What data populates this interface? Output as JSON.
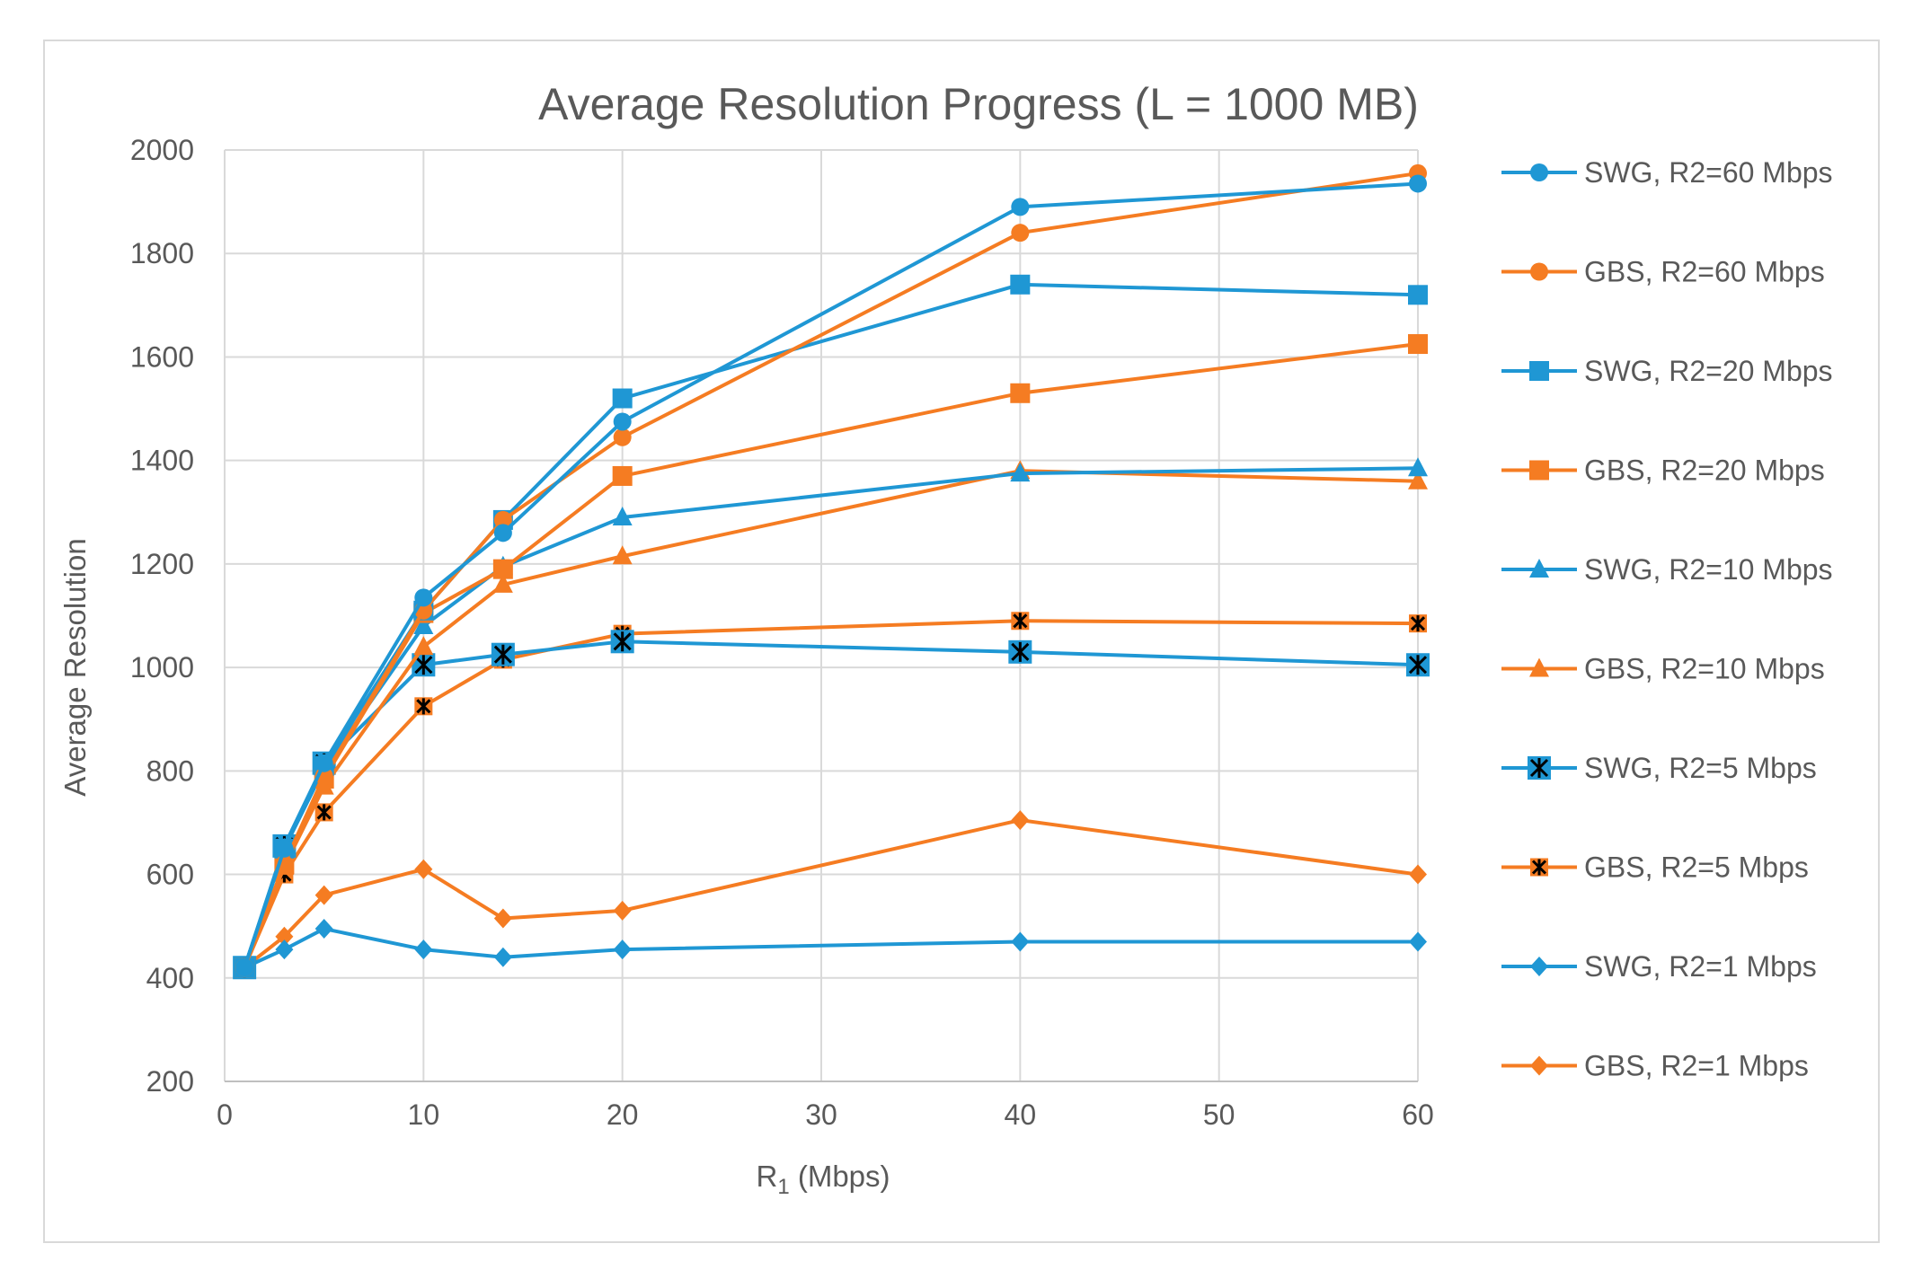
{
  "chart_data": {
    "type": "line",
    "title": "Average Resolution Progress (L = 1000 MB)",
    "xlabel_main": "R",
    "xlabel_sub": "1",
    "xlabel_rest": " (Mbps)",
    "ylabel": "Average Resolution",
    "xlim": [
      0,
      60
    ],
    "ylim": [
      200,
      2000
    ],
    "xticks": [
      0,
      10,
      20,
      30,
      40,
      50,
      60
    ],
    "yticks": [
      200,
      400,
      600,
      800,
      1000,
      1200,
      1400,
      1600,
      1800,
      2000
    ],
    "grid": true,
    "legend_position": "right",
    "colors": {
      "blue": "#1f97d4",
      "orange": "#f57c22"
    },
    "x": [
      1,
      3,
      5,
      10,
      14,
      20,
      40,
      60
    ],
    "series": [
      {
        "name": "SWG, R2=60 Mbps",
        "color": "#1f97d4",
        "marker": "circle",
        "values": [
          420,
          650,
          815,
          1135,
          1260,
          1475,
          1890,
          1935
        ]
      },
      {
        "name": "GBS, R2=60 Mbps",
        "color": "#f57c22",
        "marker": "circle",
        "values": [
          420,
          620,
          790,
          1110,
          1285,
          1445,
          1840,
          1955
        ]
      },
      {
        "name": "SWG, R2=20 Mbps",
        "color": "#1f97d4",
        "marker": "square",
        "values": [
          420,
          650,
          810,
          1110,
          1285,
          1520,
          1740,
          1720
        ]
      },
      {
        "name": "GBS, R2=20 Mbps",
        "color": "#f57c22",
        "marker": "square",
        "values": [
          420,
          620,
          785,
          1105,
          1190,
          1370,
          1530,
          1625
        ]
      },
      {
        "name": "SWG, R2=10 Mbps",
        "color": "#1f97d4",
        "marker": "triangle",
        "values": [
          420,
          650,
          805,
          1080,
          1195,
          1290,
          1375,
          1385
        ]
      },
      {
        "name": "GBS, R2=10 Mbps",
        "color": "#f57c22",
        "marker": "triangle",
        "values": [
          420,
          615,
          770,
          1040,
          1160,
          1215,
          1380,
          1360
        ]
      },
      {
        "name": "SWG, R2=5 Mbps",
        "color": "#1f97d4",
        "marker": "xsquare",
        "values": [
          420,
          655,
          815,
          1005,
          1025,
          1050,
          1030,
          1005
        ]
      },
      {
        "name": "GBS, R2=5 Mbps",
        "color": "#f57c22",
        "marker": "asterisk",
        "values": [
          420,
          600,
          720,
          925,
          1015,
          1065,
          1090,
          1085
        ]
      },
      {
        "name": "SWG, R2=1 Mbps",
        "color": "#1f97d4",
        "marker": "diamond",
        "values": [
          420,
          455,
          495,
          455,
          440,
          455,
          470,
          470
        ]
      },
      {
        "name": "GBS, R2=1 Mbps",
        "color": "#f57c22",
        "marker": "diamond",
        "values": [
          420,
          480,
          560,
          610,
          515,
          530,
          705,
          600
        ]
      }
    ]
  }
}
